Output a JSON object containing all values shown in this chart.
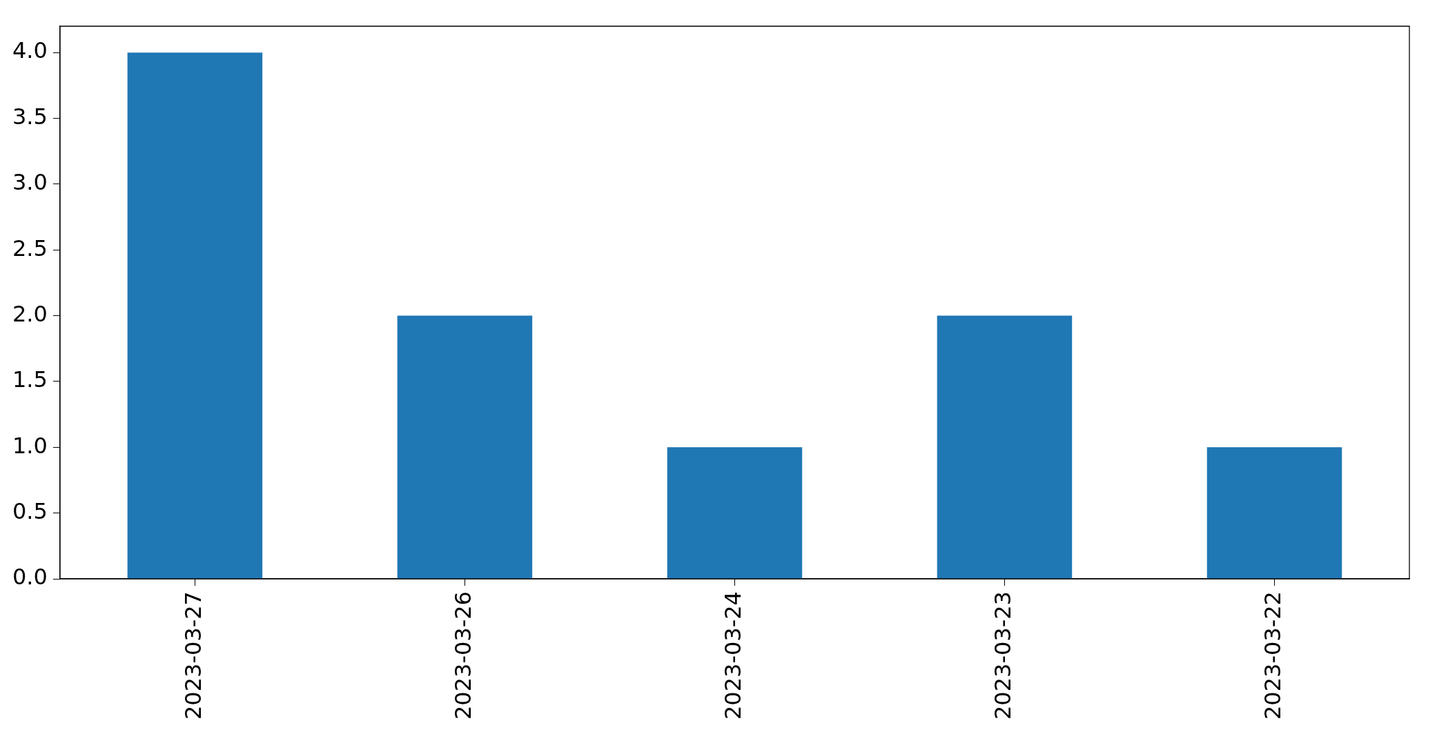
{
  "chart_data": {
    "type": "bar",
    "categories": [
      "2023-03-27",
      "2023-03-26",
      "2023-03-24",
      "2023-03-23",
      "2023-03-22"
    ],
    "values": [
      4,
      2,
      1,
      2,
      1
    ],
    "color": "#1f77b4",
    "ylim": [
      0,
      4.2
    ],
    "yticks": [
      {
        "value": 0,
        "label": "0.0"
      },
      {
        "value": 0.5,
        "label": "0.5"
      },
      {
        "value": 1,
        "label": "1.0"
      },
      {
        "value": 1.5,
        "label": "1.5"
      },
      {
        "value": 2,
        "label": "2.0"
      },
      {
        "value": 2.5,
        "label": "2.5"
      },
      {
        "value": 3,
        "label": "3.0"
      },
      {
        "value": 3.5,
        "label": "3.5"
      },
      {
        "value": 4,
        "label": "4.0"
      }
    ],
    "grid": false,
    "legend": false
  }
}
